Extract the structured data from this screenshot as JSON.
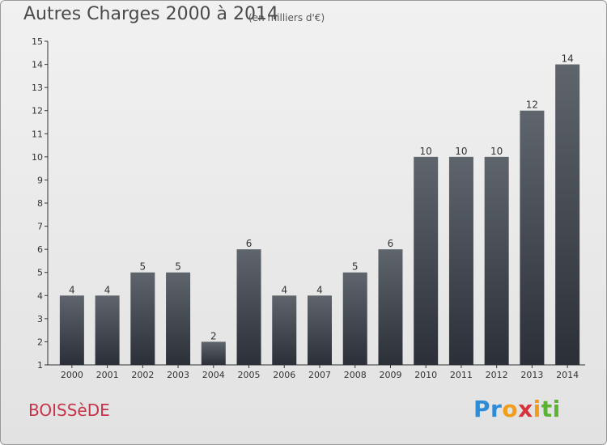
{
  "header": {
    "title": "Autres Charges 2000 à 2014",
    "subtitle": "(en milliers d'€)"
  },
  "footer": {
    "commune": "BOISSèDE",
    "logo_letters": [
      {
        "ch": "P",
        "color": "#2e8bd6"
      },
      {
        "ch": "r",
        "color": "#2e8bd6"
      },
      {
        "ch": "o",
        "color": "#f39c1a"
      },
      {
        "ch": "x",
        "color": "#d8323a"
      },
      {
        "ch": "i",
        "color": "#f39c1a"
      },
      {
        "ch": "t",
        "color": "#5bb332"
      },
      {
        "ch": "i",
        "color": "#5bb332"
      }
    ]
  },
  "chart_data": {
    "type": "bar",
    "title": "Autres Charges 2000 à 2014",
    "subtitle": "(en milliers d'€)",
    "categories": [
      "2000",
      "2001",
      "2002",
      "2003",
      "2004",
      "2005",
      "2006",
      "2007",
      "2008",
      "2009",
      "2010",
      "2011",
      "2012",
      "2013",
      "2014"
    ],
    "values": [
      4,
      4,
      5,
      5,
      2,
      6,
      4,
      4,
      5,
      6,
      10,
      10,
      10,
      12,
      14
    ],
    "ylim": [
      1,
      15
    ],
    "yticks": [
      1,
      2,
      3,
      4,
      5,
      6,
      7,
      8,
      9,
      10,
      11,
      12,
      13,
      14,
      15
    ],
    "grid": false,
    "colors": {
      "bar_top": "#5f656c",
      "bar_bottom": "#2b3038",
      "text": "#333333"
    }
  }
}
